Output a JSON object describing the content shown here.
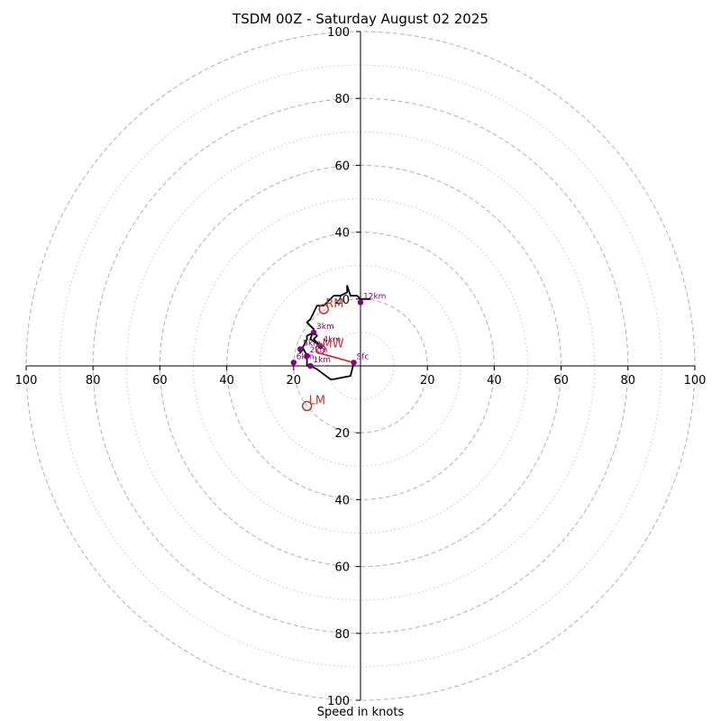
{
  "chart_data": {
    "type": "scatter",
    "title": "TSDM 00Z - Saturday August 02 2025",
    "xlabel": "Speed in knots",
    "ylabel": "",
    "xlim": [
      -100,
      100
    ],
    "ylim": [
      -100,
      100
    ],
    "grid": "concentric dashed rings every 20 kt, dotted rings at odd tens",
    "rings": {
      "major": [
        20,
        40,
        60,
        80,
        100
      ],
      "minor": [
        10,
        30,
        50,
        70,
        90
      ]
    },
    "tick_labels": {
      "x": [
        "100",
        "80",
        "60",
        "40",
        "20",
        "20",
        "40",
        "60",
        "80",
        "100"
      ],
      "y": [
        "100",
        "80",
        "60",
        "40",
        "20",
        "20",
        "40",
        "60",
        "80",
        "100"
      ]
    },
    "x_tick_values": [
      -100,
      -80,
      -60,
      -40,
      -20,
      20,
      40,
      60,
      80,
      100
    ],
    "y_tick_values": [
      100,
      80,
      60,
      40,
      20,
      -20,
      -40,
      -60,
      -80,
      -100
    ],
    "hodograph": {
      "name": "",
      "color": "#000000",
      "points": [
        {
          "u": -2,
          "v": 1
        },
        {
          "u": -3,
          "v": -3
        },
        {
          "u": -8,
          "v": -4
        },
        {
          "u": -9,
          "v": -4
        },
        {
          "u": -13,
          "v": -1
        },
        {
          "u": -15,
          "v": 0
        },
        {
          "u": -16,
          "v": 0
        },
        {
          "u": -16,
          "v": 3
        },
        {
          "u": -17,
          "v": 5
        },
        {
          "u": -18,
          "v": 4
        },
        {
          "u": -17,
          "v": 6
        },
        {
          "u": -16,
          "v": 8
        },
        {
          "u": -16,
          "v": 9
        },
        {
          "u": -14,
          "v": 10
        },
        {
          "u": -13,
          "v": 9
        },
        {
          "u": -14,
          "v": 8
        },
        {
          "u": -12,
          "v": 6
        },
        {
          "u": -15,
          "v": 8
        },
        {
          "u": -14,
          "v": 11
        },
        {
          "u": -16,
          "v": 13
        },
        {
          "u": -15,
          "v": 14
        },
        {
          "u": -14,
          "v": 16
        },
        {
          "u": -13,
          "v": 18
        },
        {
          "u": -11,
          "v": 18
        },
        {
          "u": -10,
          "v": 19
        },
        {
          "u": -8,
          "v": 21
        },
        {
          "u": -6,
          "v": 21
        },
        {
          "u": -4,
          "v": 22
        },
        {
          "u": -4,
          "v": 24
        },
        {
          "u": -3,
          "v": 21
        },
        {
          "u": -1,
          "v": 21
        },
        {
          "u": 0,
          "v": 20
        },
        {
          "u": 2,
          "v": 20
        },
        {
          "u": 3,
          "v": 20
        }
      ]
    },
    "height_markers": {
      "color": "#800080",
      "points": [
        {
          "label": "Sfc",
          "u": -2,
          "v": 1
        },
        {
          "label": "1km",
          "u": -15,
          "v": 0
        },
        {
          "label": "2km",
          "u": -16,
          "v": 3
        },
        {
          "label": "3km",
          "u": -14,
          "v": 10
        },
        {
          "label": "4km",
          "u": -12,
          "v": 6
        },
        {
          "label": "5km",
          "u": -18,
          "v": 5
        },
        {
          "label": "6km",
          "u": -20,
          "v": 1
        },
        {
          "label": "12km",
          "u": 0,
          "v": 19
        }
      ]
    },
    "storm_motion": {
      "color": "#c0392b",
      "points": [
        {
          "label": "RM",
          "u": -11,
          "v": 17
        },
        {
          "label": "MW",
          "u": -12,
          "v": 5
        },
        {
          "label": "LM",
          "u": -16,
          "v": -12
        }
      ]
    },
    "shear_vector": {
      "color": "#ff0000",
      "from": {
        "u": -2,
        "v": 1
      },
      "to": {
        "u": -13,
        "v": 4
      }
    }
  }
}
